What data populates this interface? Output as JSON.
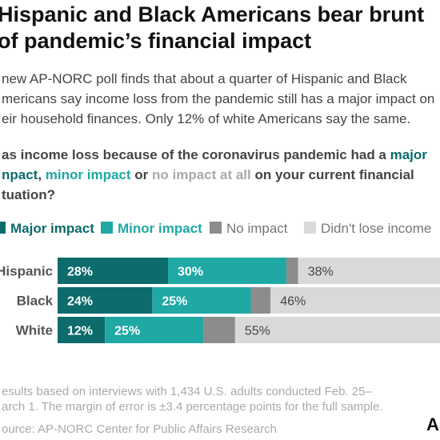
{
  "title_lines": [
    "Hispanic and Black Americans bear brunt",
    "of pandemic’s financial impact"
  ],
  "subtitle_lines": [
    "new AP-NORC poll finds that about a quarter of Hispanic and Black",
    "mericans say income loss from the pandemic still has a major impact on",
    "eir household finances. Only 12% of white Americans say the same."
  ],
  "question_lines": [
    [
      {
        "text": "as income loss because of the coronavirus pandemic had a ",
        "color": "#444"
      },
      {
        "text": "major",
        "color": "#0d6b6b"
      }
    ],
    [
      {
        "text": "npact",
        "color": "#0d6b6b"
      },
      {
        "text": ", ",
        "color": "#444"
      },
      {
        "text": "minor impact",
        "color": "#1fa8a4"
      },
      {
        "text": " or ",
        "color": "#444"
      },
      {
        "text": "no impact at all",
        "color": "#aaa"
      },
      {
        "text": " on your current financial",
        "color": "#444"
      }
    ],
    [
      {
        "text": "tuation?",
        "color": "#444"
      }
    ]
  ],
  "chart_data": {
    "type": "stacked-barh",
    "categories": [
      "Hispanic",
      "Black",
      "White"
    ],
    "series": [
      {
        "name": "Major impact",
        "color": "#0d6b6b",
        "label_color": "#0d6b6b",
        "values": [
          28,
          24,
          12
        ],
        "value_labels": [
          "28%",
          "24%",
          "12%"
        ]
      },
      {
        "name": "Minor impact",
        "color": "#1fa8a4",
        "label_color": "#1fa8a4",
        "values": [
          30,
          25,
          25
        ],
        "value_labels": [
          "30%",
          "25%",
          "25%"
        ]
      },
      {
        "name": "No impact",
        "color": "#8c8c8c",
        "label_color": "#777",
        "values": [
          3,
          5,
          8
        ],
        "value_labels": [
          null,
          null,
          null
        ]
      },
      {
        "name": "Didn't lose income",
        "color": "#d9d9d9",
        "label_color": "#777",
        "values": [
          38,
          46,
          55
        ],
        "value_labels": [
          "38%",
          "46%",
          "55%"
        ]
      }
    ]
  },
  "footer_lines": [
    "esults based on interviews with 1,434 U.S. adults conducted Feb. 25–",
    "arch 1. The margin of error is ±3.4 percentage points for the full sample."
  ],
  "source": "ource: AP-NORC Center for Public Affairs Research",
  "logo": "AP"
}
